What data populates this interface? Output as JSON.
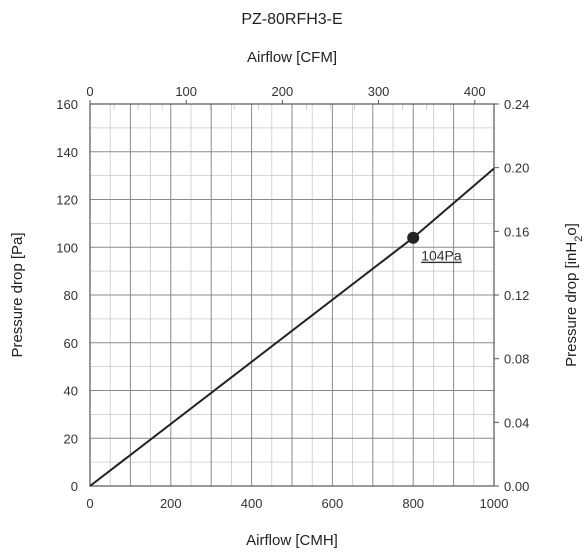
{
  "chart_data": {
    "type": "line",
    "title": "PZ-80RFH3-E",
    "xlabel": "Airflow [CMH]",
    "x2label": "Airflow [CFM]",
    "ylabel": "Pressure drop [Pa]",
    "y2label": "Pressure drop [inH2o]",
    "xlim": [
      0,
      1000
    ],
    "ylim": [
      0,
      160
    ],
    "x2lim": [
      0,
      420
    ],
    "y2lim": [
      0,
      0.24
    ],
    "x_ticks": [
      "0",
      "200",
      "400",
      "600",
      "800",
      "1000"
    ],
    "y_ticks": [
      "0",
      "20",
      "40",
      "60",
      "80",
      "100",
      "120",
      "140",
      "160"
    ],
    "x2_ticks": [
      "0",
      "100",
      "200",
      "300",
      "400"
    ],
    "y2_ticks": [
      "0.00",
      "0.04",
      "0.08",
      "0.12",
      "0.16",
      "0.20",
      "0.24"
    ],
    "grid": true,
    "series": [
      {
        "x": [
          0,
          800,
          1000
        ],
        "y": [
          0,
          104,
          133
        ]
      }
    ],
    "marker": {
      "x": 800,
      "y": 104,
      "label": "104Pa"
    },
    "colors": {
      "line": "#222222",
      "grid": "#c8c8c8",
      "frame": "#555555"
    }
  }
}
